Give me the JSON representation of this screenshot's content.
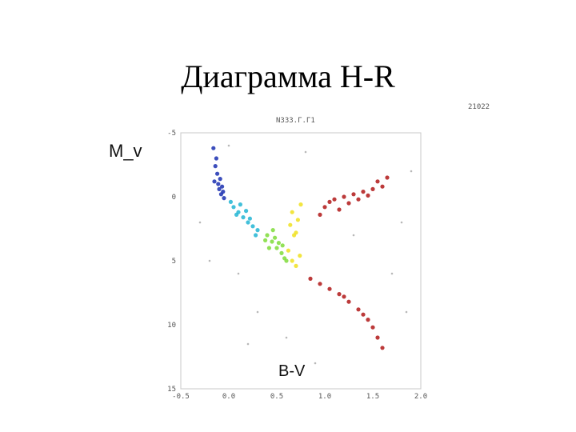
{
  "slide": {
    "title": "Диаграмма H-R"
  },
  "chart_data": {
    "type": "scatter",
    "title": "",
    "header_left": "Ν333.Γ.Γ1",
    "header_right": "21022",
    "xlabel": "B-V",
    "ylabel": "M_v",
    "xlim": [
      -0.5,
      2.0
    ],
    "ylim": [
      15,
      -5
    ],
    "y_inverted": true,
    "x_ticks": [
      "-0.5",
      "0.0",
      "0.5",
      "1.0",
      "1.5",
      "2.0"
    ],
    "x_tick_values": [
      -0.5,
      0.0,
      0.5,
      1.0,
      1.5,
      2.0
    ],
    "y_ticks": [
      "-5",
      "0",
      "5",
      "10",
      "15"
    ],
    "y_tick_values": [
      -5,
      0,
      5,
      10,
      15
    ],
    "grid": false,
    "legend": "none",
    "colors": {
      "blue": "#1a2fb0",
      "cyan": "#22b5d4",
      "green": "#7fdc3a",
      "yellow": "#f0e020",
      "red": "#b01818",
      "gray": "#9a9a9a"
    },
    "series": [
      {
        "color": "blue",
        "cluster": "upper-left main sequence",
        "points": [
          [
            -0.15,
            -1.2
          ],
          [
            -0.1,
            -0.6
          ],
          [
            -0.12,
            -1.8
          ],
          [
            -0.08,
            -0.2
          ],
          [
            -0.14,
            -2.4
          ],
          [
            -0.05,
            0.1
          ],
          [
            -0.11,
            -1.0
          ],
          [
            -0.07,
            -0.8
          ],
          [
            -0.13,
            -3.0
          ],
          [
            -0.16,
            -3.8
          ],
          [
            -0.06,
            -0.4
          ],
          [
            -0.09,
            -1.4
          ]
        ]
      },
      {
        "color": "cyan",
        "cluster": "main sequence A-F",
        "points": [
          [
            0.05,
            0.8
          ],
          [
            0.1,
            1.2
          ],
          [
            0.15,
            1.6
          ],
          [
            0.2,
            2.0
          ],
          [
            0.12,
            0.6
          ],
          [
            0.25,
            2.3
          ],
          [
            0.08,
            1.4
          ],
          [
            0.18,
            1.1
          ],
          [
            0.3,
            2.6
          ],
          [
            0.22,
            1.7
          ],
          [
            0.02,
            0.4
          ],
          [
            0.28,
            3.0
          ]
        ]
      },
      {
        "color": "green",
        "cluster": "main sequence F-G",
        "points": [
          [
            0.4,
            3.0
          ],
          [
            0.45,
            3.5
          ],
          [
            0.5,
            4.0
          ],
          [
            0.55,
            4.4
          ],
          [
            0.48,
            3.2
          ],
          [
            0.42,
            4.0
          ],
          [
            0.52,
            3.6
          ],
          [
            0.58,
            4.8
          ],
          [
            0.46,
            2.6
          ],
          [
            0.6,
            5.0
          ],
          [
            0.38,
            3.4
          ],
          [
            0.56,
            3.8
          ]
        ]
      },
      {
        "color": "yellow",
        "cluster": "G dwarfs and subgiants",
        "points": [
          [
            0.62,
            4.2
          ],
          [
            0.66,
            5.0
          ],
          [
            0.7,
            5.4
          ],
          [
            0.68,
            3.0
          ],
          [
            0.72,
            1.8
          ],
          [
            0.64,
            2.2
          ],
          [
            0.74,
            4.6
          ],
          [
            0.7,
            2.8
          ],
          [
            0.66,
            1.2
          ],
          [
            0.75,
            0.6
          ]
        ]
      },
      {
        "color": "red",
        "cluster": "giant clump and lower main sequence",
        "points": [
          [
            1.0,
            0.8
          ],
          [
            1.05,
            0.4
          ],
          [
            1.1,
            0.2
          ],
          [
            1.2,
            0.0
          ],
          [
            1.3,
            -0.2
          ],
          [
            1.4,
            -0.4
          ],
          [
            1.5,
            -0.6
          ],
          [
            1.6,
            -0.8
          ],
          [
            1.15,
            1.0
          ],
          [
            1.25,
            0.5
          ],
          [
            1.35,
            0.2
          ],
          [
            1.45,
            -0.1
          ],
          [
            0.95,
            1.4
          ],
          [
            1.55,
            -1.2
          ],
          [
            1.65,
            -1.5
          ],
          [
            0.85,
            6.4
          ],
          [
            0.95,
            6.8
          ],
          [
            1.05,
            7.2
          ],
          [
            1.15,
            7.6
          ],
          [
            1.25,
            8.2
          ],
          [
            1.35,
            8.8
          ],
          [
            1.45,
            9.6
          ],
          [
            1.5,
            10.2
          ],
          [
            1.55,
            11.0
          ],
          [
            1.6,
            11.8
          ],
          [
            1.4,
            9.2
          ],
          [
            1.2,
            7.8
          ]
        ]
      },
      {
        "color": "gray",
        "cluster": "field scatter",
        "points": [
          [
            -0.3,
            2.0
          ],
          [
            0.1,
            6.0
          ],
          [
            0.3,
            9.0
          ],
          [
            0.6,
            11.0
          ],
          [
            1.8,
            2.0
          ],
          [
            1.9,
            -2.0
          ],
          [
            0.0,
            -4.0
          ],
          [
            0.9,
            13.0
          ],
          [
            1.7,
            6.0
          ],
          [
            -0.2,
            5.0
          ],
          [
            0.8,
            -3.5
          ],
          [
            1.3,
            3.0
          ],
          [
            0.2,
            11.5
          ],
          [
            1.85,
            9.0
          ]
        ]
      }
    ]
  }
}
